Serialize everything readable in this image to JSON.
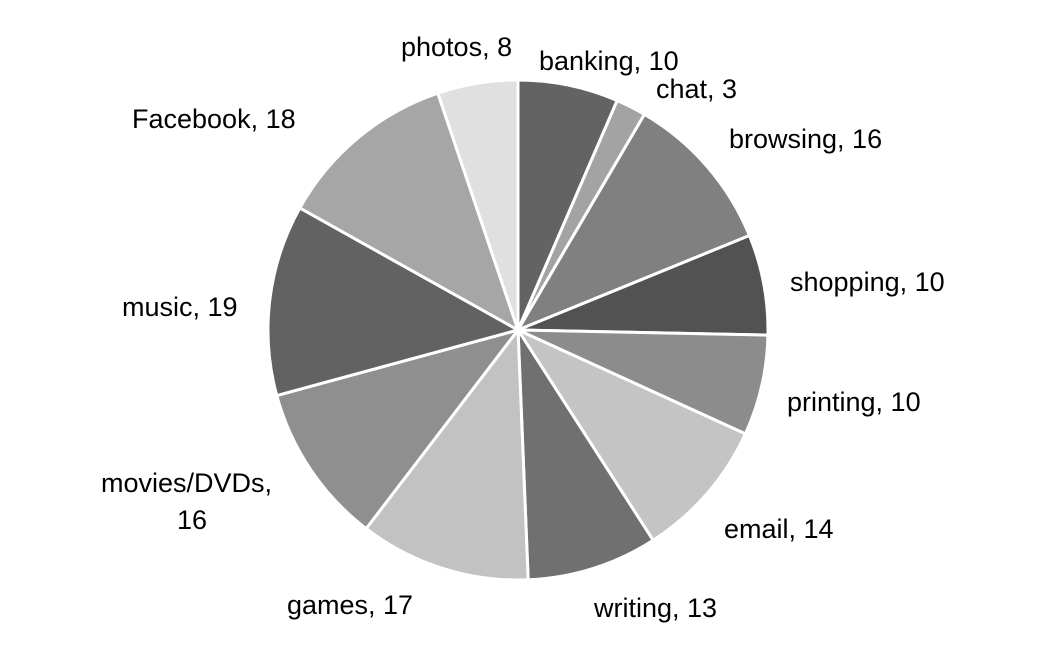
{
  "chart_data": {
    "type": "pie",
    "title": "",
    "categories": [
      "banking",
      "chat",
      "browsing",
      "shopping",
      "printing",
      "email",
      "writing",
      "games",
      "movies/DVDs",
      "music",
      "Facebook",
      "photos"
    ],
    "values": [
      10,
      3,
      16,
      10,
      10,
      14,
      13,
      17,
      16,
      19,
      18,
      8
    ],
    "colors": [
      "#636363",
      "#a3a3a3",
      "#808080",
      "#525252",
      "#8c8c8c",
      "#c4c4c4",
      "#707070",
      "#c2c2c2",
      "#8f8f8f",
      "#626262",
      "#a6a6a6",
      "#e0e0e0"
    ],
    "label_lines": [
      [
        "banking, 10"
      ],
      [
        "chat, 3"
      ],
      [
        "browsing, 16"
      ],
      [
        "shopping, 10"
      ],
      [
        "printing, 10"
      ],
      [
        "email, 14"
      ],
      [
        "writing, 13"
      ],
      [
        "games, 17"
      ],
      [
        "movies/DVDs,",
        "16"
      ],
      [
        "music, 19"
      ],
      [
        "Facebook, 18"
      ],
      [
        "photos, 8"
      ]
    ],
    "start_angle": "12 o'clock",
    "direction": "clockwise",
    "legend": "none",
    "data_labels": "outside, category and value"
  }
}
